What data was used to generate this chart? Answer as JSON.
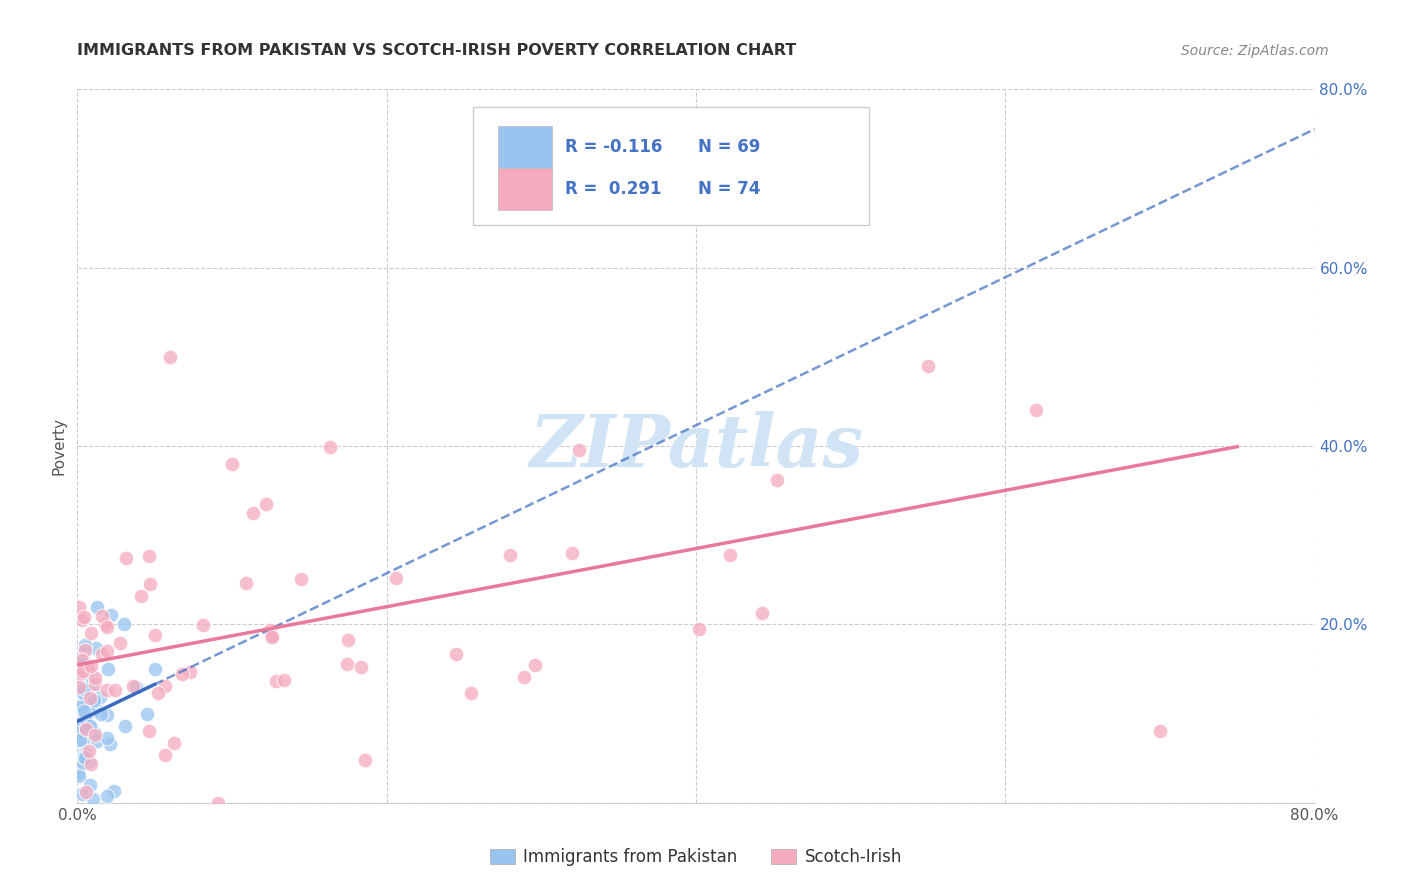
{
  "title": "IMMIGRANTS FROM PAKISTAN VS SCOTCH-IRISH POVERTY CORRELATION CHART",
  "source": "Source: ZipAtlas.com",
  "ylabel": "Poverty",
  "R1": -0.116,
  "N1": 69,
  "R2": 0.291,
  "N2": 74,
  "color_blue": "#99C4F0",
  "color_pink": "#F5AABE",
  "color_blue_dark": "#4472C4",
  "color_pink_dark": "#E8799A",
  "color_text": "#4472C4",
  "color_grid": "#CCCCCC",
  "background_color": "#FFFFFF",
  "watermark_color": "#D0E4F5",
  "legend_label1": "Immigrants from Pakistan",
  "legend_label2": "Scotch-Irish",
  "xlim": [
    0.0,
    0.8
  ],
  "ylim": [
    0.0,
    0.8
  ],
  "ytick_vals": [
    0.0,
    0.2,
    0.4,
    0.6,
    0.8
  ],
  "ytick_labels": [
    "",
    "20.0%",
    "40.0%",
    "60.0%",
    "80.0%"
  ]
}
